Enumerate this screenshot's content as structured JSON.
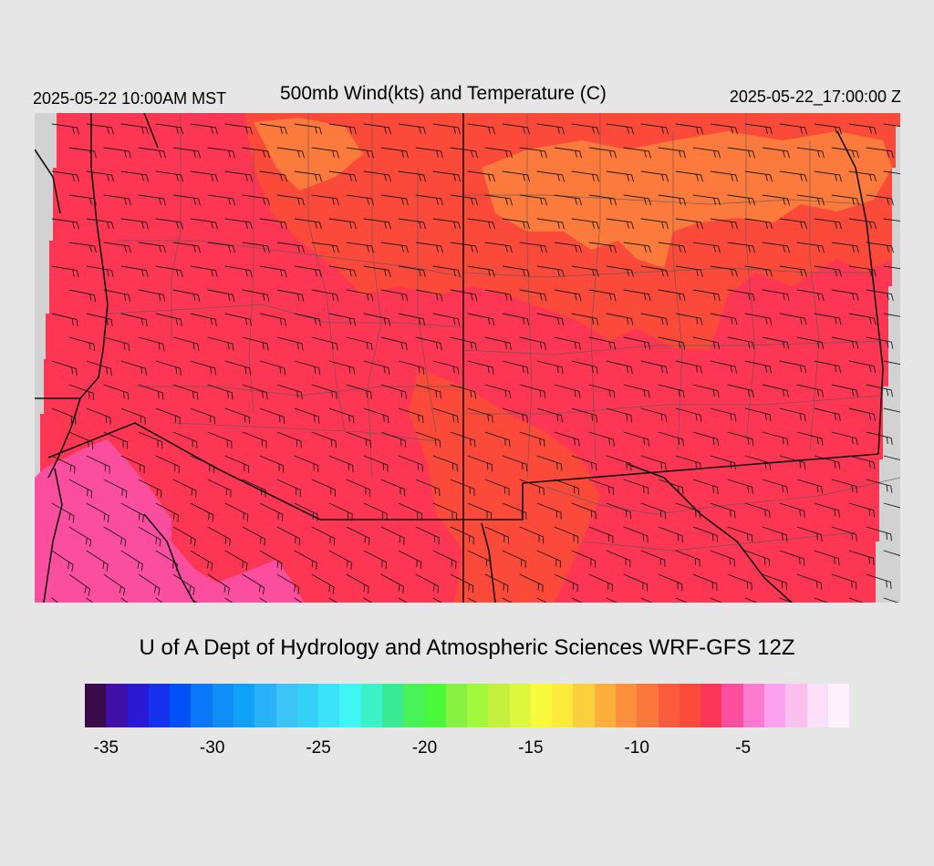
{
  "header": {
    "local_time": "2025-05-22 10:00AM MST",
    "title": "500mb Wind(kts) and Temperature (C)",
    "valid_time": "2025-05-22_17:00:00 Z"
  },
  "credit": "U of A Dept of Hydrology and Atmospheric Sciences WRF-GFS 12Z",
  "colors": {
    "background": "#e6e6e6",
    "map_outside": "#d2d2d2",
    "temp_dominant": "#fd3653",
    "temp_warm": "#fb4a3a",
    "temp_warmest": "#fb7a3c",
    "temp_cold": "#fc4e9e",
    "boundary": "#111111",
    "county_lines": "#555555",
    "barbs": "#1a1a1a"
  },
  "legend": {
    "swatches": [
      "#3a0a4a",
      "#3f0fa8",
      "#2a1ad4",
      "#1530ee",
      "#0050f8",
      "#0a78f8",
      "#0f8ef8",
      "#10a2f8",
      "#2ab2f8",
      "#3cc4f8",
      "#34d0f8",
      "#3ce2f8",
      "#40f6f4",
      "#3ef2c8",
      "#38ea94",
      "#4af25a",
      "#4afa3a",
      "#88f040",
      "#a2f83c",
      "#c4f040",
      "#dcf83c",
      "#fafa3c",
      "#fcea3c",
      "#fcd03c",
      "#fcb03c",
      "#fc903c",
      "#fc783c",
      "#fc5c3c",
      "#fc4a3c",
      "#fc3656",
      "#fc4e9e",
      "#fc7ad0",
      "#fca0f0",
      "#fcc0f0",
      "#fce0fa",
      "#fef2fe"
    ],
    "ticks": [
      {
        "label": "-35",
        "index": 1
      },
      {
        "label": "-30",
        "index": 6
      },
      {
        "label": "-25",
        "index": 11
      },
      {
        "label": "-20",
        "index": 16
      },
      {
        "label": "-15",
        "index": 21
      },
      {
        "label": "-10",
        "index": 26
      },
      {
        "label": "-5",
        "index": 31
      }
    ]
  }
}
